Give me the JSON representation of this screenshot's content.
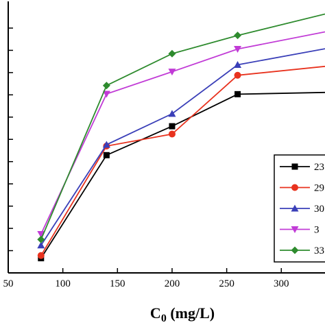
{
  "chart_data": {
    "type": "line",
    "title": "",
    "xlabel": "C",
    "xlabel_sub": "0",
    "xlabel_unit": " (mg/L)",
    "ylabel": "",
    "xlim": [
      50,
      340
    ],
    "ylim": [
      0,
      1.22
    ],
    "xticks": [
      50,
      100,
      150,
      200,
      250,
      300
    ],
    "xtick_labels": [
      "50",
      "100",
      "150",
      "200",
      "250",
      "300"
    ],
    "yticks": [
      0.1,
      0.2,
      0.3,
      0.4,
      0.5,
      0.6,
      0.7,
      0.8,
      0.9,
      1.0,
      1.1
    ],
    "grid": false,
    "legend_position": "right",
    "x": [
      80,
      140,
      200,
      260,
      340
    ],
    "series": [
      {
        "name": "23",
        "color": "#000000",
        "marker": "square",
        "values": [
          0.066,
          0.529,
          0.659,
          0.803,
          0.811
        ]
      },
      {
        "name": "29",
        "color": "#e8321e",
        "marker": "circle",
        "values": [
          0.078,
          0.57,
          0.624,
          0.888,
          0.928
        ]
      },
      {
        "name": "30",
        "color": "#3a3fb8",
        "marker": "triangle-up",
        "values": [
          0.124,
          0.576,
          0.715,
          0.935,
          1.007
        ]
      },
      {
        "name": "3",
        "color": "#c13bd6",
        "marker": "triangle-down",
        "values": [
          0.174,
          0.804,
          0.904,
          1.006,
          1.083
        ]
      },
      {
        "name": "33",
        "color": "#2e8b2e",
        "marker": "diamond",
        "values": [
          0.15,
          0.842,
          0.985,
          1.067,
          1.163
        ]
      }
    ]
  }
}
